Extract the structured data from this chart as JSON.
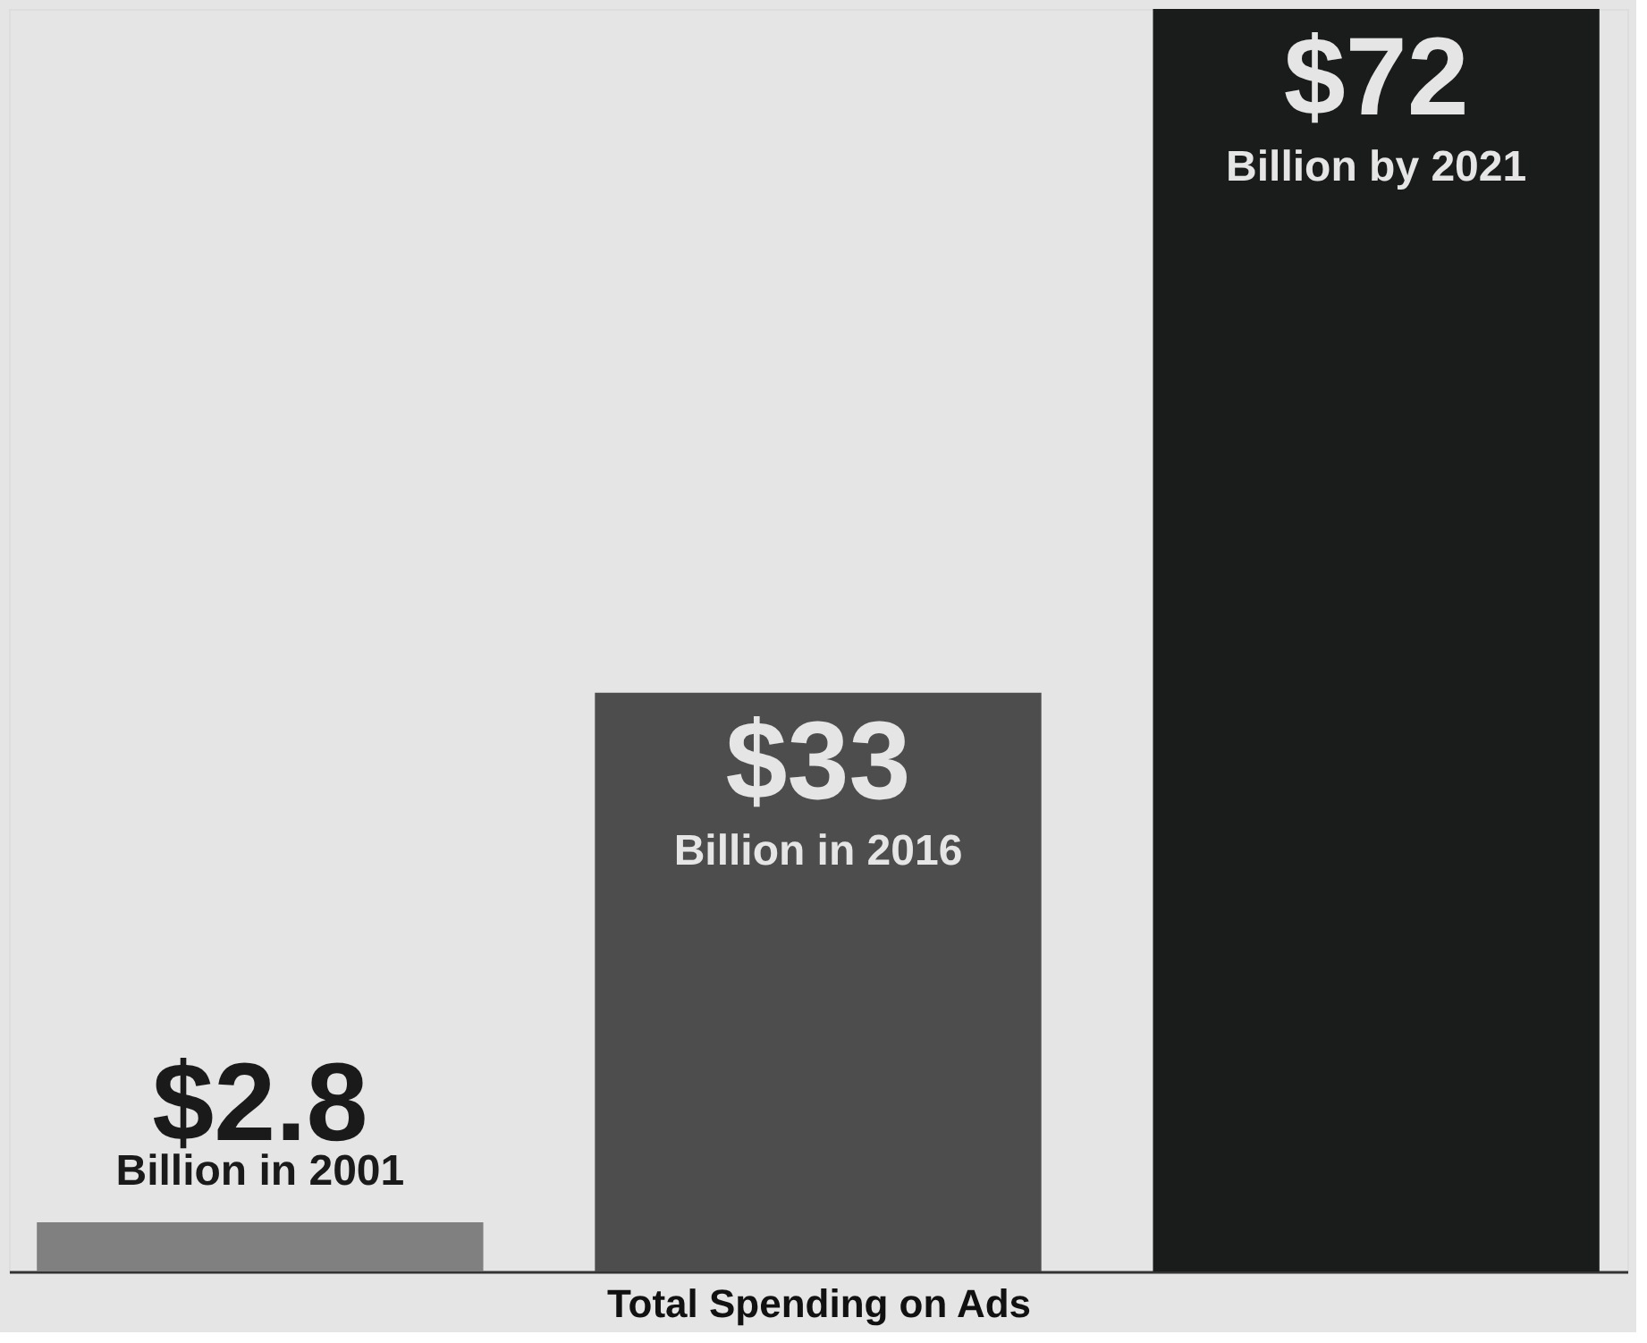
{
  "chart_data": {
    "type": "bar",
    "categories": [
      "Billion in 2001",
      "Billion in 2016",
      "Billion by 2021"
    ],
    "values": [
      2.8,
      33,
      72
    ],
    "colors": [
      "#7f807f",
      "#4c4d4c",
      "#1a1b1b"
    ],
    "value_labels": [
      "$2.8",
      "$33",
      "$72"
    ],
    "xlabel": "Total Spending on Ads",
    "tick_labels": false
  }
}
